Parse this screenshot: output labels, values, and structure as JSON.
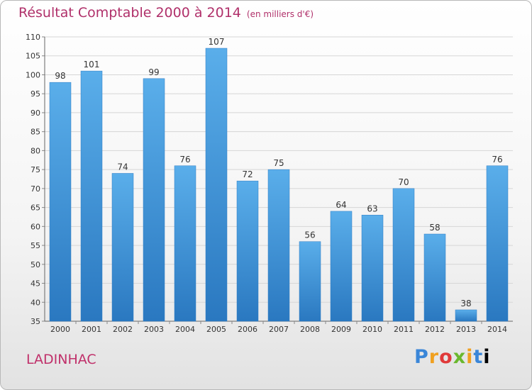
{
  "title": "Résultat Comptable 2000 à 2014",
  "subtitle": "(en milliers d'€)",
  "commune": "LADINHAC",
  "logo": "Proxiti",
  "colors": {
    "bar": "#3f93d9",
    "title": "#b0306a"
  },
  "chart_data": {
    "type": "bar",
    "categories": [
      "2000",
      "2001",
      "2002",
      "2003",
      "2004",
      "2005",
      "2006",
      "2007",
      "2008",
      "2009",
      "2010",
      "2011",
      "2012",
      "2013",
      "2014"
    ],
    "values": [
      98,
      101,
      74,
      99,
      76,
      107,
      72,
      75,
      56,
      64,
      63,
      70,
      58,
      38,
      76
    ],
    "ylim": [
      35,
      110
    ],
    "ytick_step": 5,
    "grid": true,
    "xlabel": "",
    "ylabel": ""
  }
}
